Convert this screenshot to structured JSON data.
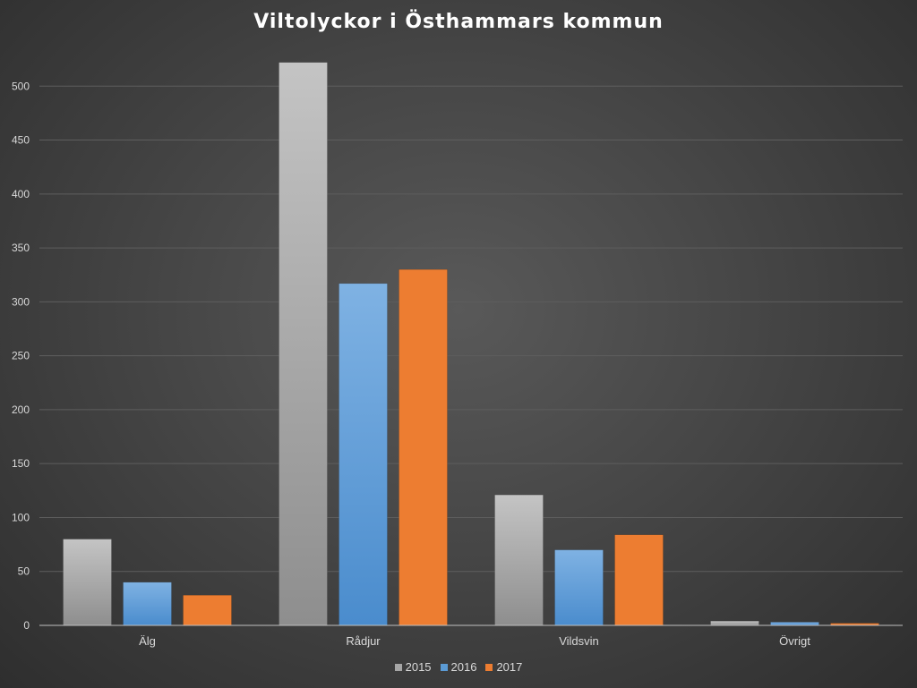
{
  "chart_data": {
    "type": "bar",
    "title": "Viltolyckor i Östhammars kommun",
    "categories": [
      "Älg",
      "Rådjur",
      "Vildsvin",
      "Övrigt"
    ],
    "series": [
      {
        "name": "2015",
        "color": "#a6a6a6",
        "values": [
          80,
          522,
          121,
          4
        ]
      },
      {
        "name": "2016",
        "color": "#5b9bd5",
        "values": [
          40,
          317,
          70,
          3
        ]
      },
      {
        "name": "2017",
        "color": "#ed7d31",
        "values": [
          28,
          330,
          84,
          2
        ]
      }
    ],
    "ylim": [
      0,
      550
    ],
    "yticks": [
      0,
      50,
      100,
      150,
      200,
      250,
      300,
      350,
      400,
      450,
      500
    ],
    "grid": true,
    "legend_position": "bottom"
  }
}
